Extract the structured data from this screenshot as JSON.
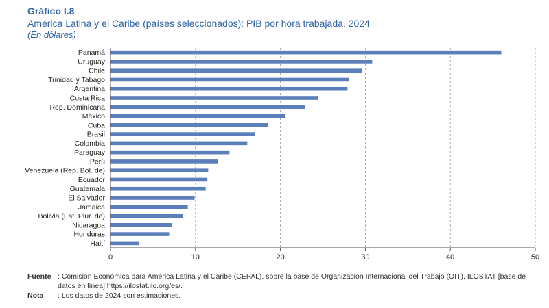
{
  "figure": {
    "label": "Gráfico I.8",
    "title": "América Latina y el Caribe (países seleccionados): PIB por hora trabajada, 2024",
    "subtitle": "(En dólares)"
  },
  "footer": {
    "source_label": "Fuente",
    "source_text": ": Comisión Económica para América Latina y el Caribe (CEPAL), sobre la base de Organización Internacional del Trabajo (OIT), ILOSTAT [base de datos en línea] https://ilostat.ilo.org/es/.",
    "note_label": "Nota",
    "note_text": ":  Los datos de 2024 son estimaciones."
  },
  "chart_data": {
    "type": "bar",
    "orientation": "horizontal",
    "title": "América Latina y el Caribe (países seleccionados): PIB por hora trabajada, 2024",
    "subtitle": "(En dólares)",
    "categories": [
      "Panamá",
      "Uruguay",
      "Chile",
      "Trinidad y Tabago",
      "Argentina",
      "Costa Rica",
      "Rep. Dominicana",
      "México",
      "Cuba",
      "Brasil",
      "Colombia",
      "Paraguay",
      "Perú",
      "Venezuela (Rep. Bol. de)",
      "Ecuador",
      "Guatemala",
      "El Salvador",
      "Jamaica",
      "Bolivia (Est. Plur. de)",
      "Nicaragua",
      "Honduras",
      "Haití"
    ],
    "values": [
      46.0,
      30.8,
      29.6,
      28.1,
      27.9,
      24.4,
      22.9,
      20.6,
      18.5,
      17.0,
      16.1,
      14.0,
      12.6,
      11.5,
      11.4,
      11.2,
      9.9,
      9.1,
      8.5,
      7.2,
      6.9,
      3.4
    ],
    "xlim": [
      0,
      50
    ],
    "xticks": [
      0,
      10,
      20,
      30,
      40,
      50
    ],
    "xlabel": "",
    "ylabel": "",
    "grid": "vertical dashed",
    "bar_color": "#5b7fba",
    "grid_color": "#9a9a9a"
  }
}
